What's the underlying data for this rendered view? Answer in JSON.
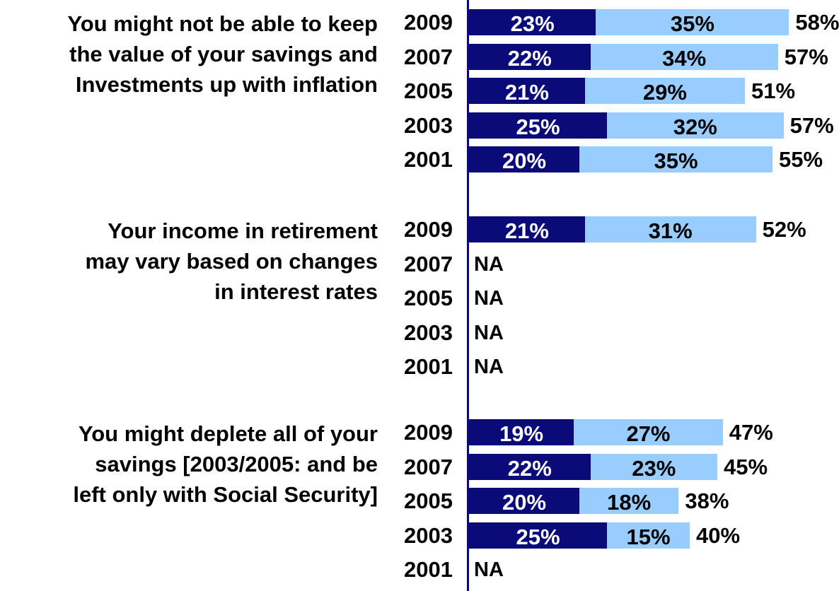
{
  "colors": {
    "strong": "#0a0a78",
    "somewhat": "#99ccff",
    "axis": "#0a0a78",
    "label_on_dark": "#ffffff",
    "label_on_light": "#000000"
  },
  "chart_data": {
    "type": "bar",
    "orientation": "horizontal-stacked",
    "grid": false,
    "legend": "none",
    "xlim": [
      0,
      70
    ],
    "groups": [
      {
        "label": "You might not be able to keep the value of your savings and Investments up with inflation",
        "label_lines": [
          "You might not be able to keep",
          "the value of your savings and",
          "Investments up with inflation"
        ],
        "rows": [
          {
            "year": "2009",
            "values": [
              23,
              35
            ],
            "labels": [
              "23%",
              "35%"
            ],
            "total": 58,
            "total_label": "58%"
          },
          {
            "year": "2007",
            "values": [
              22,
              34
            ],
            "labels": [
              "22%",
              "34%"
            ],
            "total": 57,
            "total_label": "57%"
          },
          {
            "year": "2005",
            "values": [
              21,
              29
            ],
            "labels": [
              "21%",
              "29%"
            ],
            "total": 51,
            "total_label": "51%"
          },
          {
            "year": "2003",
            "values": [
              25,
              32
            ],
            "labels": [
              "25%",
              "32%"
            ],
            "total": 57,
            "total_label": "57%"
          },
          {
            "year": "2001",
            "values": [
              20,
              35
            ],
            "labels": [
              "20%",
              "35%"
            ],
            "total": 55,
            "total_label": "55%"
          }
        ]
      },
      {
        "label": "Your income in retirement may vary based on changes in interest rates",
        "label_lines": [
          "Your income in retirement",
          "may vary based on changes",
          "in interest rates"
        ],
        "rows": [
          {
            "year": "2009",
            "values": [
              21,
              31
            ],
            "labels": [
              "21%",
              "31%"
            ],
            "total": 52,
            "total_label": "52%"
          },
          {
            "year": "2007",
            "na": "NA"
          },
          {
            "year": "2005",
            "na": "NA"
          },
          {
            "year": "2003",
            "na": "NA"
          },
          {
            "year": "2001",
            "na": "NA"
          }
        ]
      },
      {
        "label": "You might deplete all of your savings [2003/2005: and be left only with Social Security]",
        "label_lines": [
          "You might deplete all of your",
          "savings [2003/2005: and be",
          "left only with Social Security]"
        ],
        "rows": [
          {
            "year": "2009",
            "values": [
              19,
              27
            ],
            "labels": [
              "19%",
              "27%"
            ],
            "total": 47,
            "total_label": "47%"
          },
          {
            "year": "2007",
            "values": [
              22,
              23
            ],
            "labels": [
              "22%",
              "23%"
            ],
            "total": 45,
            "total_label": "45%"
          },
          {
            "year": "2005",
            "values": [
              20,
              18
            ],
            "labels": [
              "20%",
              "18%"
            ],
            "total": 38,
            "total_label": "38%"
          },
          {
            "year": "2003",
            "values": [
              25,
              15
            ],
            "labels": [
              "25%",
              "15%"
            ],
            "total": 40,
            "total_label": "40%"
          },
          {
            "year": "2001",
            "na": "NA"
          }
        ]
      }
    ]
  }
}
